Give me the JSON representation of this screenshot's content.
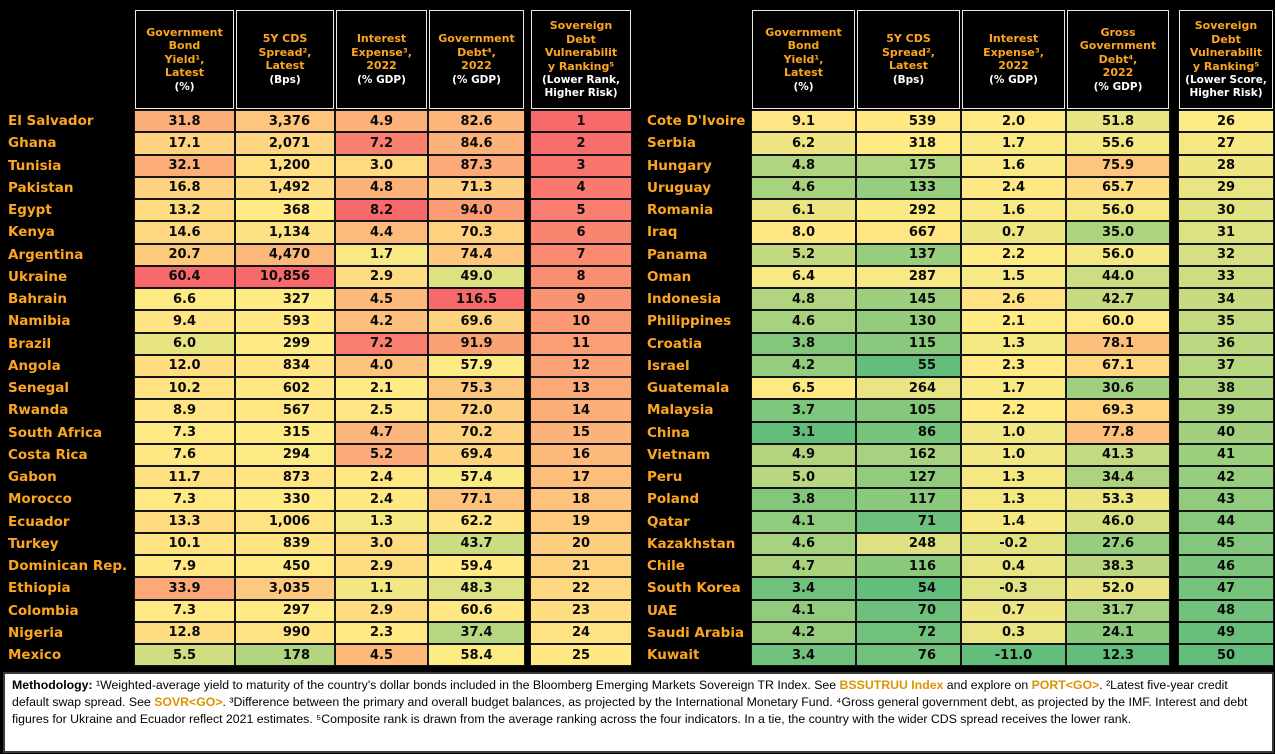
{
  "colors": {
    "background": "#000000",
    "header_text": "#FCA521",
    "unit_text": "#FFFFFF",
    "country_text": "#FCA521",
    "value_text": "#0A0A0A",
    "footer_background": "#FFFFFF",
    "footer_text": "#000000",
    "footer_code_text": "#DE9300"
  },
  "chart_data": {
    "type": "table",
    "subtype": "heatmap-ranking-table",
    "color_scale": {
      "red": "#F8696B",
      "yellow": "#FFEB84",
      "green": "#63BE7B",
      "midpoint": "median of all 50 countries per column",
      "value_columns_direction": "high value = red (worse)",
      "rank_column_direction": "low rank = red (worse)"
    },
    "tables": [
      {
        "columns": [
          {
            "label": "Government\nBond\nYield¹,\nLatest",
            "unit": "(%)"
          },
          {
            "label": "5Y CDS\nSpread²,\nLatest",
            "unit": "(Bps)"
          },
          {
            "label": "Interest\nExpense³,\n2022",
            "unit": "(% GDP)"
          },
          {
            "label": "Government\nDebt⁴,\n2022",
            "unit": "(% GDP)"
          },
          {
            "label": "Sovereign\nDebt\nVulnerabilit\ny Ranking⁵",
            "unit": "(Lower Rank,\nHigher Risk)"
          }
        ],
        "rows": [
          [
            "El Salvador",
            "31.8",
            "3,376",
            "4.9",
            "82.6",
            "1"
          ],
          [
            "Ghana",
            "17.1",
            "2,071",
            "7.2",
            "84.6",
            "2"
          ],
          [
            "Tunisia",
            "32.1",
            "1,200",
            "3.0",
            "87.3",
            "3"
          ],
          [
            "Pakistan",
            "16.8",
            "1,492",
            "4.8",
            "71.3",
            "4"
          ],
          [
            "Egypt",
            "13.2",
            "368",
            "8.2",
            "94.0",
            "5"
          ],
          [
            "Kenya",
            "14.6",
            "1,134",
            "4.4",
            "70.3",
            "6"
          ],
          [
            "Argentina",
            "20.7",
            "4,470",
            "1.7",
            "74.4",
            "7"
          ],
          [
            "Ukraine",
            "60.4",
            "10,856",
            "2.9",
            "49.0",
            "8"
          ],
          [
            "Bahrain",
            "6.6",
            "327",
            "4.5",
            "116.5",
            "9"
          ],
          [
            "Namibia",
            "9.4",
            "593",
            "4.2",
            "69.6",
            "10"
          ],
          [
            "Brazil",
            "6.0",
            "299",
            "7.2",
            "91.9",
            "11"
          ],
          [
            "Angola",
            "12.0",
            "834",
            "4.0",
            "57.9",
            "12"
          ],
          [
            "Senegal",
            "10.2",
            "602",
            "2.1",
            "75.3",
            "13"
          ],
          [
            "Rwanda",
            "8.9",
            "567",
            "2.5",
            "72.0",
            "14"
          ],
          [
            "South Africa",
            "7.3",
            "315",
            "4.7",
            "70.2",
            "15"
          ],
          [
            "Costa Rica",
            "7.6",
            "294",
            "5.2",
            "69.4",
            "16"
          ],
          [
            "Gabon",
            "11.7",
            "873",
            "2.4",
            "57.4",
            "17"
          ],
          [
            "Morocco",
            "7.3",
            "330",
            "2.4",
            "77.1",
            "18"
          ],
          [
            "Ecuador",
            "13.3",
            "1,006",
            "1.3",
            "62.2",
            "19"
          ],
          [
            "Turkey",
            "10.1",
            "839",
            "3.0",
            "43.7",
            "20"
          ],
          [
            "Dominican Rep.",
            "7.9",
            "450",
            "2.9",
            "59.4",
            "21"
          ],
          [
            "Ethiopia",
            "33.9",
            "3,035",
            "1.1",
            "48.3",
            "22"
          ],
          [
            "Colombia",
            "7.3",
            "297",
            "2.9",
            "60.6",
            "23"
          ],
          [
            "Nigeria",
            "12.8",
            "990",
            "2.3",
            "37.4",
            "24"
          ],
          [
            "Mexico",
            "5.5",
            "178",
            "4.5",
            "58.4",
            "25"
          ]
        ]
      },
      {
        "columns": [
          {
            "label": "Government\nBond\nYield¹,\nLatest",
            "unit": "(%)"
          },
          {
            "label": "5Y CDS\nSpread²,\nLatest",
            "unit": "(Bps)"
          },
          {
            "label": "Interest\nExpense³,\n2022",
            "unit": "(% GDP)"
          },
          {
            "label": "Gross\nGovernment\nDebt⁴,\n2022",
            "unit": "(% GDP)"
          },
          {
            "label": "Sovereign\nDebt\nVulnerabilit\ny Ranking⁵",
            "unit": "(Lower Score,\nHigher Risk)"
          }
        ],
        "rows": [
          [
            "Cote D'Ivoire",
            "9.1",
            "539",
            "2.0",
            "51.8",
            "26"
          ],
          [
            "Serbia",
            "6.2",
            "318",
            "1.7",
            "55.6",
            "27"
          ],
          [
            "Hungary",
            "4.8",
            "175",
            "1.6",
            "75.9",
            "28"
          ],
          [
            "Uruguay",
            "4.6",
            "133",
            "2.4",
            "65.7",
            "29"
          ],
          [
            "Romania",
            "6.1",
            "292",
            "1.6",
            "56.0",
            "30"
          ],
          [
            "Iraq",
            "8.0",
            "667",
            "0.7",
            "35.0",
            "31"
          ],
          [
            "Panama",
            "5.2",
            "137",
            "2.2",
            "56.0",
            "32"
          ],
          [
            "Oman",
            "6.4",
            "287",
            "1.5",
            "44.0",
            "33"
          ],
          [
            "Indonesia",
            "4.8",
            "145",
            "2.6",
            "42.7",
            "34"
          ],
          [
            "Philippines",
            "4.6",
            "130",
            "2.1",
            "60.0",
            "35"
          ],
          [
            "Croatia",
            "3.8",
            "115",
            "1.3",
            "78.1",
            "36"
          ],
          [
            "Israel",
            "4.2",
            "55",
            "2.3",
            "67.1",
            "37"
          ],
          [
            "Guatemala",
            "6.5",
            "264",
            "1.7",
            "30.6",
            "38"
          ],
          [
            "Malaysia",
            "3.7",
            "105",
            "2.2",
            "69.3",
            "39"
          ],
          [
            "China",
            "3.1",
            "86",
            "1.0",
            "77.8",
            "40"
          ],
          [
            "Vietnam",
            "4.9",
            "162",
            "1.0",
            "41.3",
            "41"
          ],
          [
            "Peru",
            "5.0",
            "127",
            "1.3",
            "34.4",
            "42"
          ],
          [
            "Poland",
            "3.8",
            "117",
            "1.3",
            "53.3",
            "43"
          ],
          [
            "Qatar",
            "4.1",
            "71",
            "1.4",
            "46.0",
            "44"
          ],
          [
            "Kazakhstan",
            "4.6",
            "248",
            "-0.2",
            "27.6",
            "45"
          ],
          [
            "Chile",
            "4.7",
            "116",
            "0.4",
            "38.3",
            "46"
          ],
          [
            "South Korea",
            "3.4",
            "54",
            "-0.3",
            "52.0",
            "47"
          ],
          [
            "UAE",
            "4.1",
            "70",
            "0.7",
            "31.7",
            "48"
          ],
          [
            "Saudi Arabia",
            "4.2",
            "72",
            "0.3",
            "24.1",
            "49"
          ],
          [
            "Kuwait",
            "3.4",
            "76",
            "-11.0",
            "12.3",
            "50"
          ]
        ]
      }
    ]
  },
  "footer": {
    "segments": [
      {
        "t": "Methodology: ",
        "s": "bold"
      },
      {
        "t": "¹Weighted-average yield to maturity of the country's dollar bonds included in the Bloomberg Emerging Markets Sovereign TR Index. See ",
        "s": "normal"
      },
      {
        "t": "BSSUTRUU Index",
        "s": "code"
      },
      {
        "t": " and explore on ",
        "s": "normal"
      },
      {
        "t": "PORT<GO>",
        "s": "code"
      },
      {
        "t": ". ²Latest five-year credit default swap spread. See ",
        "s": "normal"
      },
      {
        "t": "SOVR<GO>",
        "s": "code"
      },
      {
        "t": ". ³Difference between the primary and overall budget balances, as projected by the International Monetary Fund. ⁴Gross general government debt, as projected by the IMF. Interest and debt figures for Ukraine and Ecuador reflect 2021 estimates. ⁵Composite rank is drawn from the average ranking across the four indicators. In a tie, the country with the wider CDS spread receives the lower rank.",
        "s": "normal"
      }
    ]
  }
}
